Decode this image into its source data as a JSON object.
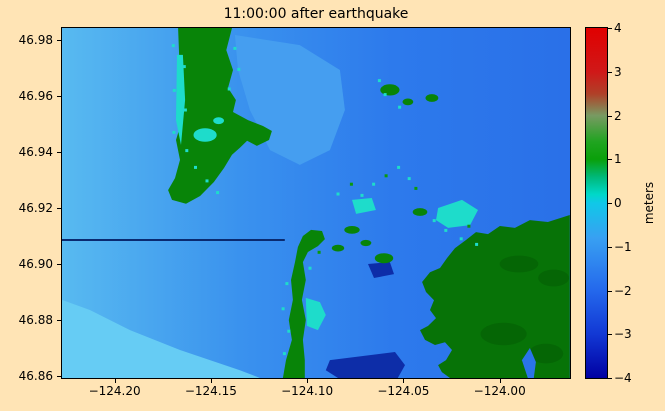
{
  "chart_data": {
    "type": "heatmap",
    "title": "11:00:00 after earthquake",
    "xlabel": "",
    "ylabel": "",
    "units": "meters",
    "value_range": [
      -4,
      4
    ],
    "grid": false,
    "x_ticks": [
      -124.2,
      -124.15,
      -124.1,
      -124.05,
      -124.0
    ],
    "x_tick_labels": [
      "−124.20",
      "−124.15",
      "−124.10",
      "−124.05",
      "−124.00"
    ],
    "y_ticks": [
      46.98,
      46.96,
      46.94,
      46.92,
      46.9,
      46.88,
      46.86
    ],
    "y_tick_labels": [
      "46.98",
      "46.96",
      "46.94",
      "46.92",
      "46.90",
      "46.88",
      "46.86"
    ],
    "extent": {
      "lon_min": -124.2273,
      "lon_max": -123.9635,
      "lat_min": 46.8593,
      "lat_max": 46.9843
    },
    "colorbar": {
      "label": "meters",
      "min": -4,
      "max": 4,
      "ticks": [
        4,
        3,
        2,
        1,
        0,
        -1,
        -2,
        -3,
        -4
      ],
      "tick_labels": [
        "4",
        "3",
        "2",
        "1",
        "0",
        "−1",
        "−2",
        "−3",
        "−4"
      ],
      "stops": [
        {
          "v": 4,
          "c": "#e00000"
        },
        {
          "v": 3,
          "c": "#d01818"
        },
        {
          "v": 2.5,
          "c": "#b04028"
        },
        {
          "v": 2,
          "c": "#789a62"
        },
        {
          "v": 1.4,
          "c": "#20a420"
        },
        {
          "v": 1,
          "c": "#0aa00a"
        },
        {
          "v": 0.6,
          "c": "#00b878"
        },
        {
          "v": 0.2,
          "c": "#00d8c8"
        },
        {
          "v": 0,
          "c": "#10c8e8"
        },
        {
          "v": -0.8,
          "c": "#38a0f2"
        },
        {
          "v": -2,
          "c": "#2468ec"
        },
        {
          "v": -3,
          "c": "#1238d4"
        },
        {
          "v": -4,
          "c": "#0000a2"
        }
      ]
    },
    "map": {
      "land_color": "#088408",
      "land_shade_color": "#056605",
      "shallow_color": "#1edccb",
      "speckle_green": "#0a9a0a",
      "water_gradient": [
        "#58baf0",
        "#3a92ee",
        "#2d7aec",
        "#2a70e8"
      ],
      "land": [
        {
          "name": "north-peninsula-land",
          "color": "#088408",
          "points": [
            [
              -124.167,
              46.9843
            ],
            [
              -124.139,
              46.9843
            ],
            [
              -124.142,
              46.9764
            ],
            [
              -124.1385,
              46.9693
            ],
            [
              -124.1411,
              46.9629
            ],
            [
              -124.137,
              46.9586
            ],
            [
              -124.1385,
              46.9543
            ],
            [
              -124.1307,
              46.9514
            ],
            [
              -124.1229,
              46.9493
            ],
            [
              -124.1183,
              46.9475
            ],
            [
              -124.1198,
              46.9443
            ],
            [
              -124.1261,
              46.9422
            ],
            [
              -124.1312,
              46.944
            ],
            [
              -124.1349,
              46.9415
            ],
            [
              -124.139,
              46.939
            ],
            [
              -124.1432,
              46.9343
            ],
            [
              -124.1484,
              46.9293
            ],
            [
              -124.1556,
              46.9243
            ],
            [
              -124.1629,
              46.9215
            ],
            [
              -124.1702,
              46.9229
            ],
            [
              -124.1722,
              46.9264
            ],
            [
              -124.1686,
              46.9307
            ],
            [
              -124.166,
              46.9372
            ],
            [
              -124.1681,
              46.9443
            ],
            [
              -124.165,
              46.9514
            ],
            [
              -124.167,
              46.9586
            ],
            [
              -124.1645,
              46.9657
            ],
            [
              -124.1665,
              46.9747
            ]
          ]
        },
        {
          "name": "south-spit-land",
          "color": "#088408",
          "points": [
            [
              -124.1126,
              46.8593
            ],
            [
              -124.1012,
              46.8593
            ],
            [
              -124.1012,
              46.8657
            ],
            [
              -124.1022,
              46.8729
            ],
            [
              -124.1007,
              46.88
            ],
            [
              -124.1027,
              46.8872
            ],
            [
              -124.1007,
              46.8943
            ],
            [
              -124.1022,
              46.9007
            ],
            [
              -124.0996,
              46.9043
            ],
            [
              -124.0944,
              46.9064
            ],
            [
              -124.0908,
              46.9089
            ],
            [
              -124.0923,
              46.9118
            ],
            [
              -124.098,
              46.9122
            ],
            [
              -124.1022,
              46.91
            ],
            [
              -124.1048,
              46.9061
            ],
            [
              -124.1063,
              46.9007
            ],
            [
              -124.1084,
              46.8943
            ],
            [
              -124.1074,
              46.8872
            ],
            [
              -124.1095,
              46.88
            ],
            [
              -124.1079,
              46.8729
            ],
            [
              -124.111,
              46.8657
            ]
          ]
        },
        {
          "name": "east-shore-land",
          "color": "#077307",
          "points": [
            [
              -123.9636,
              46.9175
            ],
            [
              -123.975,
              46.915
            ],
            [
              -123.9843,
              46.9157
            ],
            [
              -123.9921,
              46.9129
            ],
            [
              -123.9999,
              46.9136
            ],
            [
              -124.0061,
              46.9107
            ],
            [
              -124.0123,
              46.9114
            ],
            [
              -124.0175,
              46.9086
            ],
            [
              -124.0232,
              46.9057
            ],
            [
              -124.0274,
              46.9021
            ],
            [
              -124.031,
              46.8986
            ],
            [
              -124.0362,
              46.8971
            ],
            [
              -124.0403,
              46.8936
            ],
            [
              -124.0383,
              46.89
            ],
            [
              -124.0341,
              46.8871
            ],
            [
              -124.0362,
              46.8836
            ],
            [
              -124.0331,
              46.8807
            ],
            [
              -124.0372,
              46.8779
            ],
            [
              -124.0414,
              46.8764
            ],
            [
              -124.0388,
              46.8729
            ],
            [
              -124.0336,
              46.8711
            ],
            [
              -124.0284,
              46.8721
            ],
            [
              -124.0248,
              46.8693
            ],
            [
              -124.0279,
              46.8657
            ],
            [
              -124.032,
              46.8639
            ],
            [
              -124.03,
              46.8614
            ],
            [
              -124.0258,
              46.8593
            ],
            [
              -123.9636,
              46.8593
            ]
          ]
        }
      ],
      "light_patches": [
        {
          "color": "#66ccf4",
          "points": [
            [
              -124.2273,
              46.8593
            ],
            [
              -124.2273,
              46.8872
            ],
            [
              -124.2128,
              46.8836
            ],
            [
              -124.192,
              46.8764
            ],
            [
              -124.166,
              46.8693
            ],
            [
              -124.1349,
              46.8621
            ],
            [
              -124.1245,
              46.8593
            ]
          ]
        },
        {
          "color": "#459ef0",
          "points": [
            [
              -124.1375,
              46.9818
            ],
            [
              -124.1038,
              46.9782
            ],
            [
              -124.083,
              46.9693
            ],
            [
              -124.0804,
              46.955
            ],
            [
              -124.0882,
              46.9407
            ],
            [
              -124.1038,
              46.9354
            ],
            [
              -124.1193,
              46.9407
            ],
            [
              -124.1297,
              46.955
            ],
            [
              -124.1359,
              46.9693
            ]
          ]
        }
      ],
      "deep_patches": [
        {
          "color": "#0d2da8",
          "points": [
            [
              -124.0882,
              46.8657
            ],
            [
              -124.0544,
              46.8686
            ],
            [
              -124.0492,
              46.8639
            ],
            [
              -124.0529,
              46.8593
            ],
            [
              -124.084,
              46.8593
            ],
            [
              -124.0903,
              46.8621
            ]
          ]
        },
        {
          "color": "#0d2da8",
          "points": [
            [
              -124.0684,
              46.9
            ],
            [
              -124.057,
              46.9007
            ],
            [
              -124.0549,
              46.8964
            ],
            [
              -124.0653,
              46.895
            ]
          ]
        }
      ],
      "shallow_patches": [
        {
          "points": [
            [
              -124.032,
              46.92
            ],
            [
              -124.0196,
              46.9229
            ],
            [
              -124.0113,
              46.9193
            ],
            [
              -124.0154,
              46.9139
            ],
            [
              -124.0268,
              46.9129
            ],
            [
              -124.0331,
              46.9157
            ]
          ]
        },
        {
          "points": [
            [
              -124.1007,
              46.8879
            ],
            [
              -124.0934,
              46.8864
            ],
            [
              -124.0903,
              46.8818
            ],
            [
              -124.0944,
              46.8764
            ],
            [
              -124.1001,
              46.8779
            ]
          ]
        },
        {
          "points": [
            [
              -124.1676,
              46.9747
            ],
            [
              -124.1645,
              46.9747
            ],
            [
              -124.1634,
              46.9586
            ],
            [
              -124.1655,
              46.9425
            ],
            [
              -124.1681,
              46.9514
            ]
          ]
        },
        {
          "points": [
            [
              -124.0767,
              46.9229
            ],
            [
              -124.0664,
              46.9236
            ],
            [
              -124.0643,
              46.9193
            ],
            [
              -124.0746,
              46.9179
            ]
          ]
        }
      ],
      "water_over_land": [
        {
          "color": "#2a74e8",
          "points": [
            [
              -123.9854,
              46.8593
            ],
            [
              -123.9885,
              46.8657
            ],
            [
              -123.9843,
              46.87
            ],
            [
              -123.9812,
              46.865
            ],
            [
              -123.9823,
              46.8593
            ]
          ]
        }
      ],
      "islands": [
        [
          -124.057,
          46.9622,
          0.005,
          0.002
        ],
        [
          -124.0477,
          46.9579,
          0.0028,
          0.0012
        ],
        [
          -124.0352,
          46.9593,
          0.0033,
          0.0014
        ],
        [
          -124.0767,
          46.9122,
          0.004,
          0.0014
        ],
        [
          -124.084,
          46.9057,
          0.0032,
          0.0012
        ],
        [
          -124.0695,
          46.9075,
          0.0028,
          0.0011
        ],
        [
          -124.0601,
          46.9021,
          0.0048,
          0.0018
        ],
        [
          -124.0414,
          46.9186,
          0.0038,
          0.0014
        ]
      ],
      "land_shade": [
        [
          -123.998,
          46.875,
          0.012,
          0.004
        ],
        [
          -123.976,
          46.868,
          0.009,
          0.0035
        ],
        [
          -123.99,
          46.9,
          0.01,
          0.003
        ],
        [
          -123.972,
          46.895,
          0.008,
          0.003
        ]
      ],
      "cyan_spots": [
        [
          -124.153,
          46.9461,
          0.006,
          0.0024
        ],
        [
          -124.146,
          46.9512,
          0.0028,
          0.0012
        ]
      ],
      "speckles": [
        [
          -124.1695,
          46.978,
          "c"
        ],
        [
          -124.1638,
          46.9705,
          "c"
        ],
        [
          -124.169,
          46.962,
          "c"
        ],
        [
          -124.1632,
          46.955,
          "c"
        ],
        [
          -124.1692,
          46.947,
          "c"
        ],
        [
          -124.1625,
          46.9405,
          "c"
        ],
        [
          -124.158,
          46.9345,
          "c"
        ],
        [
          -124.152,
          46.9297,
          "c"
        ],
        [
          -124.1465,
          46.9255,
          "c"
        ],
        [
          -124.1375,
          46.977,
          "c"
        ],
        [
          -124.1355,
          46.9695,
          "c"
        ],
        [
          -124.1405,
          46.9625,
          "c"
        ],
        [
          -124.084,
          46.925,
          "c"
        ],
        [
          -124.077,
          46.9285,
          "g"
        ],
        [
          -124.0715,
          46.9245,
          "c"
        ],
        [
          -124.0655,
          46.9285,
          "c"
        ],
        [
          -124.059,
          46.9315,
          "g"
        ],
        [
          -124.0525,
          46.9345,
          "c"
        ],
        [
          -124.047,
          46.9305,
          "c"
        ],
        [
          -124.0435,
          46.927,
          "g"
        ],
        [
          -124.1105,
          46.893,
          "c"
        ],
        [
          -124.1125,
          46.884,
          "c"
        ],
        [
          -124.1095,
          46.876,
          "c"
        ],
        [
          -124.1118,
          46.868,
          "c"
        ],
        [
          -124.0985,
          46.8985,
          "c"
        ],
        [
          -124.0938,
          46.9042,
          "g"
        ],
        [
          -124.028,
          46.912,
          "c"
        ],
        [
          -124.02,
          46.909,
          "c"
        ],
        [
          -124.012,
          46.907,
          "c"
        ],
        [
          -124.034,
          46.9155,
          "c"
        ],
        [
          -124.016,
          46.9135,
          "g"
        ],
        [
          -124.0595,
          46.9605,
          "c"
        ],
        [
          -124.0625,
          46.9655,
          "c"
        ],
        [
          -124.052,
          46.956,
          "c"
        ]
      ],
      "jetty": {
        "x1": -124.2273,
        "y1": 46.9086,
        "x2": -124.1116,
        "y2": 46.9086,
        "color": "#0a2a70",
        "width": 2
      }
    }
  }
}
